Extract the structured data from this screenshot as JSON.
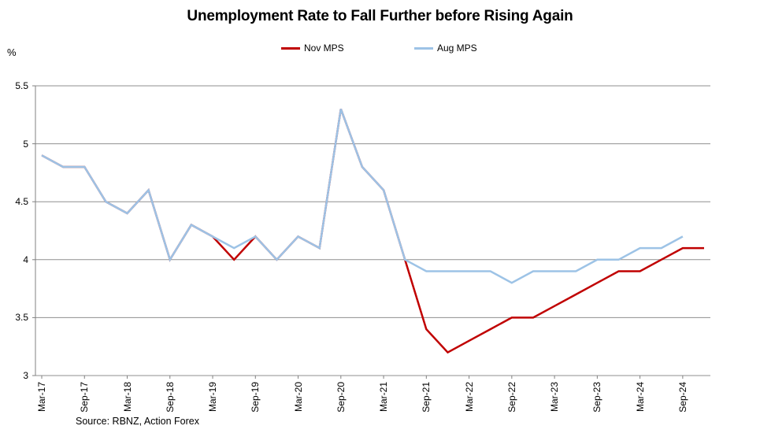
{
  "title": "Unemployment Rate to Fall Further before Rising Again",
  "y_axis_unit": "%",
  "source": "Source: RBNZ, Action Forex",
  "legend": [
    {
      "label": "Nov MPS",
      "color": "#C00000"
    },
    {
      "label": "Aug MPS",
      "color": "#9DC3E6"
    }
  ],
  "colors": {
    "gridline": "#8f8f8f",
    "axis": "#808080",
    "text": "#000000",
    "background": "#ffffff"
  },
  "chart_data": {
    "type": "line",
    "x": [
      "Mar-17",
      "Jun-17",
      "Sep-17",
      "Dec-17",
      "Mar-18",
      "Jun-18",
      "Sep-18",
      "Dec-18",
      "Mar-19",
      "Jun-19",
      "Sep-19",
      "Dec-19",
      "Mar-20",
      "Jun-20",
      "Sep-20",
      "Dec-20",
      "Mar-21",
      "Jun-21",
      "Sep-21",
      "Dec-21",
      "Mar-22",
      "Jun-22",
      "Sep-22",
      "Dec-22",
      "Mar-23",
      "Jun-23",
      "Sep-23",
      "Dec-23",
      "Mar-24",
      "Jun-24",
      "Sep-24",
      "Dec-24"
    ],
    "x_tick_every": 2,
    "series": [
      {
        "name": "Nov MPS",
        "color": "#C00000",
        "values": [
          4.9,
          4.8,
          4.8,
          4.5,
          4.4,
          4.6,
          4.0,
          4.3,
          4.2,
          4.0,
          4.2,
          4.0,
          4.2,
          4.1,
          5.3,
          4.8,
          4.6,
          4.0,
          3.4,
          3.2,
          3.3,
          3.4,
          3.5,
          3.5,
          3.6,
          3.7,
          3.8,
          3.9,
          3.9,
          4.0,
          4.1,
          4.1
        ]
      },
      {
        "name": "Aug MPS",
        "color": "#9DC3E6",
        "values": [
          4.9,
          4.8,
          4.8,
          4.5,
          4.4,
          4.6,
          4.0,
          4.3,
          4.2,
          4.1,
          4.2,
          4.0,
          4.2,
          4.1,
          5.3,
          4.8,
          4.6,
          4.0,
          3.9,
          3.9,
          3.9,
          3.9,
          3.8,
          3.9,
          3.9,
          3.9,
          4.0,
          4.0,
          4.1,
          4.1,
          4.2,
          null
        ]
      }
    ],
    "title": "Unemployment Rate to Fall Further before Rising Again",
    "xlabel": "",
    "ylabel": "%",
    "ylim": [
      3.0,
      5.5
    ],
    "yticks": [
      5.5,
      5.0,
      4.5,
      4.0,
      3.5,
      3.0
    ],
    "ytick_labels": [
      "5.5",
      "5",
      "4.5",
      "4",
      "3.5",
      "3"
    ],
    "grid": true,
    "legend_position": "top"
  }
}
